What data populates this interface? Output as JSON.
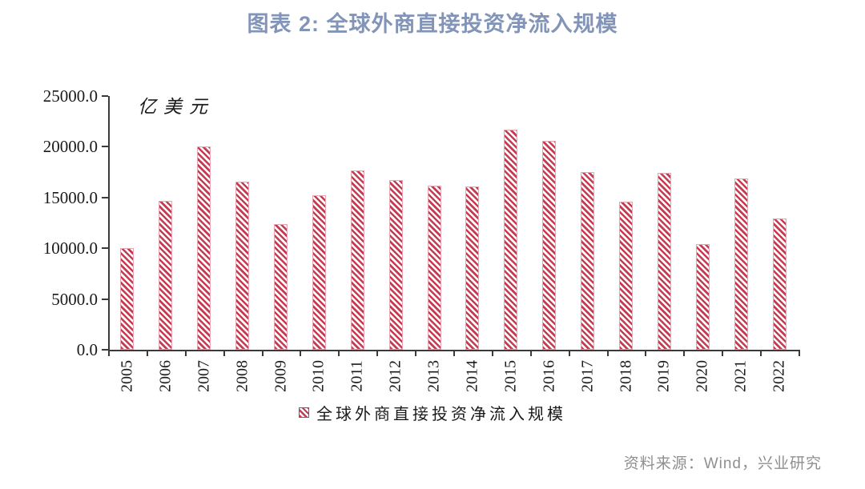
{
  "chart_data": {
    "type": "bar",
    "title": "图表 2: 全球外商直接投资净流入规模",
    "unit_label": "亿美元",
    "categories": [
      "2005",
      "2006",
      "2007",
      "2008",
      "2009",
      "2010",
      "2011",
      "2012",
      "2013",
      "2014",
      "2015",
      "2016",
      "2017",
      "2018",
      "2019",
      "2020",
      "2021",
      "2022"
    ],
    "values": [
      10000,
      14700,
      20000,
      16600,
      12400,
      15200,
      17700,
      16700,
      16200,
      16100,
      21700,
      20600,
      17500,
      14600,
      17400,
      10400,
      16900,
      12900
    ],
    "ylim": [
      0,
      25000
    ],
    "ytick_step": 5000,
    "ytick_labels": [
      "0.0",
      "5000.0",
      "10000.0",
      "15000.0",
      "20000.0",
      "25000.0"
    ],
    "legend_label": "全球外商直接投资净流入规模",
    "legend_position": "bottom",
    "grid": false,
    "hatch": "diagonal-backslash",
    "bar_color": "#c73b52",
    "bar_border_color": "#eaa4b0"
  },
  "source": {
    "text": "资料来源：Wind，兴业研究"
  },
  "colors": {
    "title": "#8295b8",
    "axis": "#3a3a3a",
    "tick_label": "#1a1a1a",
    "source_text": "#8f8f8f"
  }
}
